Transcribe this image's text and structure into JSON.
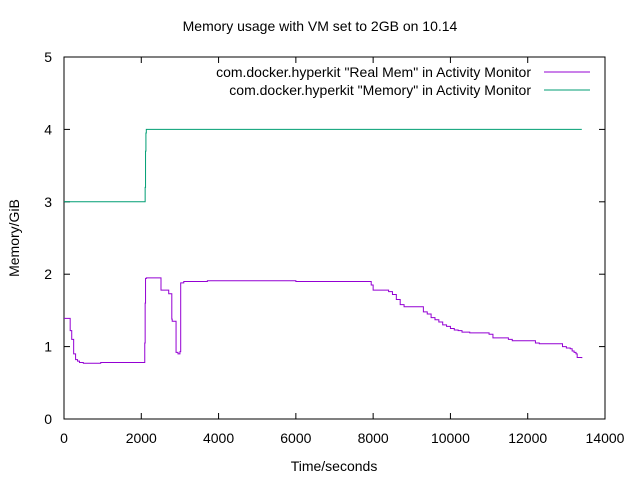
{
  "chart_data": {
    "type": "line",
    "title": "Memory usage with VM set to 2GB on 10.14",
    "xlabel": "Time/seconds",
    "ylabel": "Memory/GiB",
    "xlim": [
      0,
      14000
    ],
    "ylim": [
      0,
      5
    ],
    "x_ticks": [
      0,
      2000,
      4000,
      6000,
      8000,
      10000,
      12000,
      14000
    ],
    "y_ticks": [
      0,
      1,
      2,
      3,
      4,
      5
    ],
    "grid": false,
    "legend_position": "top-right",
    "series": [
      {
        "name": "com.docker.hyperkit \"Real Mem\" in Activity Monitor",
        "color": "#9400d3",
        "x": [
          0,
          150,
          160,
          200,
          250,
          300,
          350,
          400,
          500,
          900,
          950,
          1600,
          2080,
          2090,
          2100,
          2110,
          2130,
          2500,
          2510,
          2700,
          2710,
          2780,
          2790,
          2800,
          2900,
          2950,
          3000,
          3020,
          3100,
          3700,
          3710,
          5800,
          6000,
          7900,
          7950,
          8000,
          8400,
          8500,
          8600,
          8700,
          8800,
          9200,
          9300,
          9400,
          9500,
          9600,
          9700,
          9800,
          9900,
          10000,
          10100,
          10200,
          10300,
          10400,
          10500,
          10900,
          11000,
          11100,
          11500,
          11600,
          12200,
          12300,
          12400,
          12800,
          12900,
          13000,
          13100,
          13150,
          13200,
          13250,
          13280,
          13400
        ],
        "y": [
          1.39,
          1.39,
          1.22,
          1.1,
          0.9,
          0.82,
          0.8,
          0.78,
          0.77,
          0.77,
          0.78,
          0.78,
          0.78,
          1.05,
          1.6,
          1.94,
          1.95,
          1.95,
          1.78,
          1.78,
          1.73,
          1.73,
          1.38,
          1.35,
          0.92,
          0.9,
          0.93,
          1.88,
          1.9,
          1.9,
          1.91,
          1.91,
          1.9,
          1.9,
          1.85,
          1.78,
          1.76,
          1.72,
          1.65,
          1.58,
          1.55,
          1.55,
          1.48,
          1.45,
          1.4,
          1.37,
          1.34,
          1.3,
          1.28,
          1.25,
          1.23,
          1.22,
          1.2,
          1.2,
          1.19,
          1.19,
          1.17,
          1.12,
          1.1,
          1.08,
          1.05,
          1.04,
          1.04,
          1.04,
          1.0,
          0.98,
          0.97,
          0.94,
          0.92,
          0.9,
          0.85,
          0.84
        ]
      },
      {
        "name": "com.docker.hyperkit \"Memory\" in Activity Monitor",
        "color": "#009e73",
        "x": [
          0,
          2090,
          2100,
          2110,
          2120,
          2130,
          13400
        ],
        "y": [
          3.0,
          3.0,
          3.2,
          3.7,
          3.95,
          4.0,
          4.0
        ]
      }
    ]
  }
}
